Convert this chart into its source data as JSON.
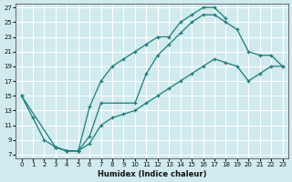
{
  "xlabel": "Humidex (Indice chaleur)",
  "bg_color": "#d0eaed",
  "grid_color": "#ffffff",
  "line_color": "#1e7b7b",
  "marker": "+",
  "xlim": [
    -0.5,
    23.5
  ],
  "ylim": [
    6.5,
    27.5
  ],
  "xticks": [
    0,
    1,
    2,
    3,
    4,
    5,
    6,
    7,
    8,
    9,
    10,
    11,
    12,
    13,
    14,
    15,
    16,
    17,
    18,
    19,
    20,
    21,
    22,
    23
  ],
  "yticks": [
    7,
    9,
    11,
    13,
    15,
    17,
    19,
    21,
    23,
    25,
    27
  ],
  "line1_x": [
    0,
    1,
    2,
    3,
    4,
    5,
    6,
    7,
    8,
    9,
    10,
    11,
    12,
    13,
    14,
    15,
    16,
    17,
    18
  ],
  "line1_y": [
    15,
    12,
    9,
    8,
    7.5,
    7.5,
    13.5,
    17,
    19,
    20,
    21,
    22,
    23,
    23,
    25,
    26,
    27,
    27,
    25.5
  ],
  "line2_x": [
    0,
    3,
    4,
    5,
    6,
    7,
    10,
    11,
    12,
    13,
    14,
    15,
    16,
    17,
    18,
    19,
    20,
    21,
    22,
    23
  ],
  "line2_y": [
    15,
    8,
    7.5,
    7.5,
    9.5,
    14,
    14,
    18,
    20.5,
    22,
    23.5,
    25,
    26,
    26,
    25,
    24,
    21,
    20.5,
    20.5,
    19
  ],
  "line3_x": [
    3,
    4,
    5,
    6,
    7,
    8,
    9,
    10,
    11,
    12,
    13,
    14,
    15,
    16,
    17,
    18,
    19,
    20,
    21,
    22,
    23
  ],
  "line3_y": [
    8,
    7.5,
    7.5,
    8.5,
    11,
    12,
    12.5,
    13,
    14,
    15,
    16,
    17,
    18,
    19,
    20,
    19.5,
    19,
    17,
    18,
    19,
    19
  ]
}
